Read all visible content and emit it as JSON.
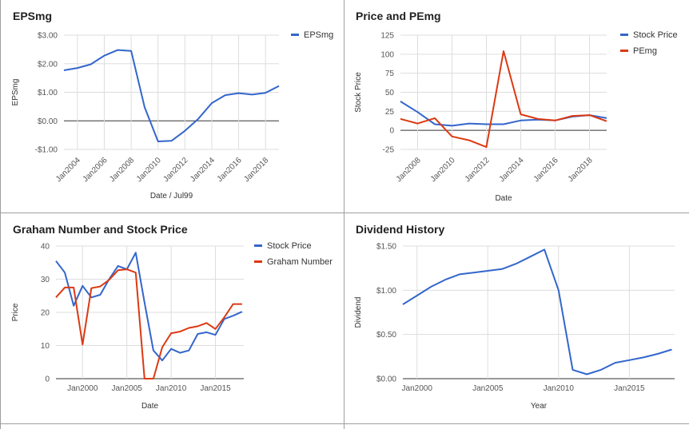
{
  "chart_data": [
    {
      "id": "eps",
      "type": "line",
      "title": "EPSmg",
      "xlabel": "Date / Jul99",
      "ylabel": "EPSmg",
      "x": [
        2003,
        2004,
        2005,
        2006,
        2007,
        2008,
        2009,
        2010,
        2011,
        2012,
        2013,
        2014,
        2015,
        2016,
        2017,
        2018,
        2019
      ],
      "series": [
        {
          "name": "EPSmg",
          "color": "#3366cc",
          "values": [
            1.77,
            1.85,
            1.98,
            2.28,
            2.48,
            2.45,
            0.48,
            -0.72,
            -0.7,
            -0.35,
            0.07,
            0.62,
            0.9,
            0.97,
            0.92,
            0.98,
            1.22
          ]
        }
      ],
      "ylim": [
        -1,
        3
      ],
      "yticks": [
        -1,
        0,
        1,
        2,
        3
      ],
      "ytick_labels": [
        "-$1.00",
        "$0.00",
        "$1.00",
        "$2.00",
        "$3.00"
      ],
      "xticks": [
        2004,
        2006,
        2008,
        2010,
        2012,
        2014,
        2016,
        2018
      ],
      "xtick_labels": [
        "Jan2004",
        "Jan2006",
        "Jan2008",
        "Jan2010",
        "Jan2012",
        "Jan2014",
        "Jan2016",
        "Jan2018"
      ],
      "xlim": [
        2003,
        2019
      ],
      "legend": "top-right",
      "grid": true
    },
    {
      "id": "pe",
      "type": "line",
      "title": "Price and PEmg",
      "xlabel": "Date",
      "ylabel": "Stock Price",
      "x": [
        2007,
        2008,
        2009,
        2010,
        2011,
        2012,
        2013,
        2014,
        2015,
        2016,
        2017,
        2018,
        2019
      ],
      "series": [
        {
          "name": "Stock Price",
          "color": "#3366cc",
          "values": [
            38,
            24,
            8,
            6,
            9,
            8,
            8,
            13,
            14,
            13,
            18,
            20,
            16
          ]
        },
        {
          "name": "PEmg",
          "color": "#dc3912",
          "values": [
            15,
            9,
            16,
            -8,
            -13,
            -22,
            104,
            21,
            15,
            13,
            19,
            20,
            12
          ]
        }
      ],
      "ylim": [
        -25,
        125
      ],
      "yticks": [
        -25,
        0,
        25,
        50,
        75,
        100,
        125
      ],
      "ytick_labels": [
        "-25",
        "0",
        "25",
        "50",
        "75",
        "100",
        "125"
      ],
      "xticks": [
        2008,
        2010,
        2012,
        2014,
        2016,
        2018
      ],
      "xtick_labels": [
        "Jan2008",
        "Jan2010",
        "Jan2012",
        "Jan2014",
        "Jan2016",
        "Jan2018"
      ],
      "xlim": [
        2007,
        2019
      ],
      "legend": "top-right",
      "grid": true
    },
    {
      "id": "graham",
      "type": "line",
      "title": "Graham Number and Stock Price",
      "xlabel": "Date",
      "ylabel": "Price",
      "x": [
        1997,
        1998,
        1999,
        2000,
        2001,
        2002,
        2003,
        2004,
        2005,
        2006,
        2007,
        2008,
        2009,
        2010,
        2011,
        2012,
        2013,
        2014,
        2015,
        2016,
        2017,
        2018
      ],
      "series": [
        {
          "name": "Stock Price",
          "color": "#3366cc",
          "values": [
            35.5,
            32,
            22,
            28,
            24.5,
            25.3,
            30,
            34,
            33,
            38,
            23,
            8.5,
            5.5,
            9,
            7.8,
            8.5,
            13.5,
            14,
            13.2,
            18,
            19,
            20.2
          ]
        },
        {
          "name": "Graham Number",
          "color": "#dc3912",
          "values": [
            24.5,
            27.5,
            27.5,
            10.3,
            27.3,
            27.8,
            29.8,
            32.7,
            33,
            32,
            0,
            0,
            9.5,
            13.7,
            14.2,
            15.3,
            15.8,
            16.8,
            15,
            18.5,
            22.5,
            22.5
          ]
        }
      ],
      "ylim": [
        0,
        40
      ],
      "yticks": [
        0,
        10,
        20,
        30,
        40
      ],
      "ytick_labels": [
        "0",
        "10",
        "20",
        "30",
        "40"
      ],
      "xticks": [
        2000,
        2005,
        2010,
        2015
      ],
      "xtick_labels": [
        "Jan2000",
        "Jan2005",
        "Jan2010",
        "Jan2015"
      ],
      "xlim": [
        1997,
        2018.2
      ],
      "legend": "top-right",
      "grid": true
    },
    {
      "id": "dividend",
      "type": "line",
      "title": "Dividend History",
      "xlabel": "Year",
      "ylabel": "Dividend",
      "x": [
        1999,
        2000,
        2001,
        2002,
        2003,
        2004,
        2005,
        2006,
        2007,
        2008,
        2009,
        2010,
        2011,
        2012,
        2013,
        2014,
        2015,
        2016,
        2017,
        2018
      ],
      "series": [
        {
          "name": "Dividend",
          "color": "#3366cc",
          "values": [
            0.84,
            0.94,
            1.04,
            1.12,
            1.18,
            1.2,
            1.22,
            1.24,
            1.3,
            1.38,
            1.46,
            1.0,
            0.1,
            0.05,
            0.1,
            0.18,
            0.21,
            0.24,
            0.28,
            0.33
          ]
        }
      ],
      "ylim": [
        0,
        1.5
      ],
      "yticks": [
        0,
        0.5,
        1.0,
        1.5
      ],
      "ytick_labels": [
        "$0.00",
        "$0.50",
        "$1.00",
        "$1.50"
      ],
      "xticks": [
        2000,
        2005,
        2010,
        2015
      ],
      "xtick_labels": [
        "Jan2000",
        "Jan2005",
        "Jan2010",
        "Jan2015"
      ],
      "xlim": [
        1999,
        2018.2
      ],
      "legend": "none",
      "grid": true
    }
  ]
}
